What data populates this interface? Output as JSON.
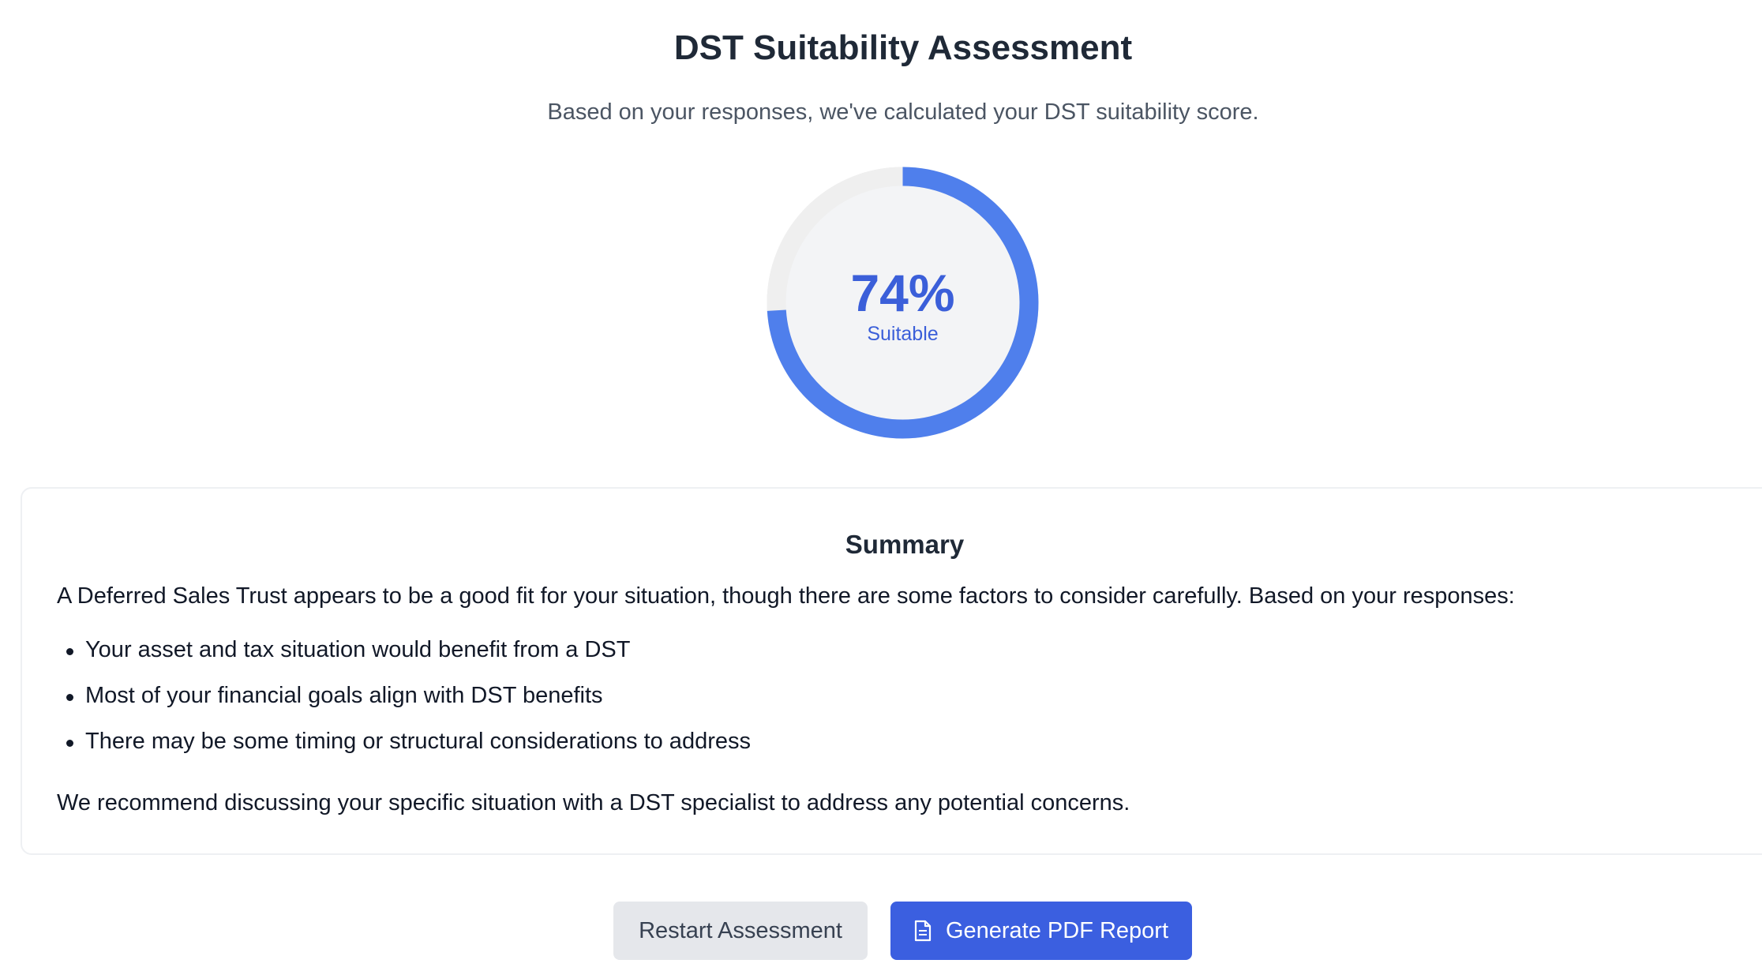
{
  "header": {
    "title": "DST Suitability Assessment",
    "subtitle": "Based on your responses, we've calculated your DST suitability score."
  },
  "score": {
    "value_text": "74%",
    "value_fraction": 0.74,
    "label": "Suitable",
    "accent_color": "#4f7fec",
    "track_color": "#efefef"
  },
  "summary": {
    "title": "Summary",
    "intro": "A Deferred Sales Trust appears to be a good fit for your situation, though there are some factors to consider carefully. Based on your responses:",
    "bullets": [
      "Your asset and tax situation would benefit from a DST",
      "Most of your financial goals align with DST benefits",
      "There may be some timing or structural considerations to address"
    ],
    "closing": "We recommend discussing your specific situation with a DST specialist to address any potential concerns."
  },
  "actions": {
    "restart_label": "Restart Assessment",
    "generate_label": "Generate PDF Report",
    "generate_icon": "document-icon",
    "primary_color": "#3b5fe0"
  }
}
